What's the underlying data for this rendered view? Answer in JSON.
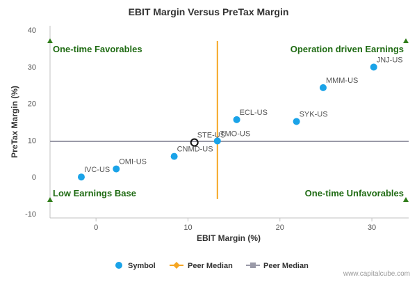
{
  "chart_data": {
    "type": "scatter",
    "title": "EBIT Margin Versus PreTax Margin",
    "xlabel": "EBIT Margin (%)",
    "ylabel": "PreTax Margin (%)",
    "xlim": [
      -5,
      34
    ],
    "ylim": [
      -10,
      40
    ],
    "xticks": [
      0,
      10,
      20,
      30
    ],
    "yticks": [
      -10,
      0,
      10,
      20,
      30,
      40
    ],
    "grid": false,
    "points": [
      {
        "label": "IVC-US",
        "x": -1.6,
        "y": 0.0
      },
      {
        "label": "OMI-US",
        "x": 2.2,
        "y": 2.2
      },
      {
        "label": "CNMD-US",
        "x": 8.5,
        "y": 5.6
      },
      {
        "label": "STE-US",
        "x": 10.7,
        "y": 9.4,
        "highlight": true
      },
      {
        "label": "TMO-US",
        "x": 13.2,
        "y": 9.8
      },
      {
        "label": "ECL-US",
        "x": 15.3,
        "y": 15.6
      },
      {
        "label": "SYK-US",
        "x": 21.8,
        "y": 15.1
      },
      {
        "label": "MMM-US",
        "x": 24.7,
        "y": 24.3
      },
      {
        "label": "JNJ-US",
        "x": 30.2,
        "y": 29.9
      }
    ],
    "peer_median_x": 13.2,
    "peer_median_y": 9.7,
    "peer_line_y_range": [
      -6,
      37
    ],
    "peer_line_x_range": [
      -5,
      34
    ],
    "quadrant_labels": {
      "top_left": "One-time Favorables",
      "top_right": "Operation driven Earnings",
      "bottom_left": "Low Earnings Base",
      "bottom_right": "One-time Unfavorables"
    },
    "legend": {
      "placement": "bottom",
      "items": [
        {
          "name": "Symbol",
          "color": "#1aa3e8",
          "marker": "circle"
        },
        {
          "name": "Peer Median",
          "color": "#f5a623",
          "marker": "diamond"
        },
        {
          "name": "Peer Median",
          "color": "#9a9aa8",
          "marker": "square"
        }
      ]
    },
    "colors": {
      "point": "#1aa3e8",
      "highlight_stroke": "#111111",
      "vertical_median": "#f5a623",
      "horizontal_median": "#9a9aa8",
      "quadrant_text": "#1f6b13",
      "arrow": "#2f7d19"
    }
  },
  "footer": {
    "credit": "www.capitalcube.com"
  }
}
